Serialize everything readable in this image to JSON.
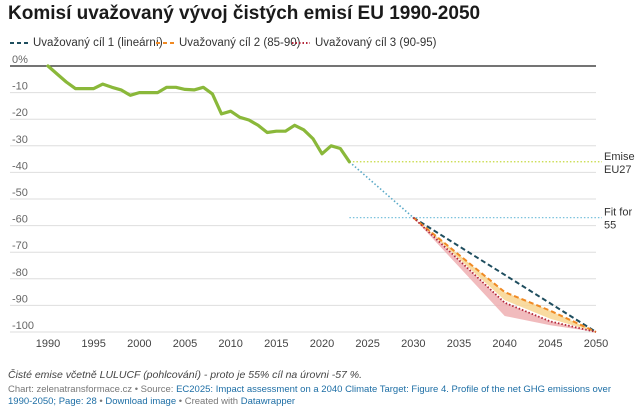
{
  "title": "Komisí uvažovaný vývoj čistých emisí EU 1990-2050",
  "legend": [
    {
      "label": "Uvažovaný cíl 1 (lineární)",
      "color": "#1f4e5f",
      "style": "dashed"
    },
    {
      "label": "Uvažovaný cíl 2 (85-90)",
      "color": "#f08a24",
      "style": "dashed"
    },
    {
      "label": "Uvažovaný cíl 3 (90-95)",
      "color": "#b3263a",
      "style": "dotted"
    }
  ],
  "chart_data": {
    "type": "line",
    "xlim": [
      1990,
      2050
    ],
    "ylim": [
      -100,
      0
    ],
    "x_ticks": [
      1990,
      1995,
      2000,
      2005,
      2010,
      2015,
      2020,
      2025,
      2030,
      2035,
      2040,
      2045,
      2050
    ],
    "y_ticks": [
      0,
      -10,
      -20,
      -30,
      -40,
      -50,
      -60,
      -70,
      -80,
      -90,
      -100
    ],
    "y_tick_labels": [
      "0%",
      "-10",
      "-20",
      "-30",
      "-40",
      "-50",
      "-60",
      "-70",
      "-80",
      "-90",
      "-100"
    ],
    "grid": "horizontal",
    "historical": {
      "color": "#8ab83a",
      "x": [
        1990,
        1991,
        1992,
        1993,
        1994,
        1995,
        1996,
        1997,
        1998,
        1999,
        2000,
        2001,
        2002,
        2003,
        2004,
        2005,
        2006,
        2007,
        2008,
        2009,
        2010,
        2011,
        2012,
        2013,
        2014,
        2015,
        2016,
        2017,
        2018,
        2019,
        2020,
        2021,
        2022,
        2023
      ],
      "y": [
        0,
        -3,
        -6,
        -8.5,
        -8.5,
        -8.5,
        -6.8,
        -8,
        -9,
        -11,
        -10,
        -10,
        -10,
        -8,
        -8,
        -8.8,
        -9,
        -8,
        -10.5,
        -18,
        -17,
        -19.3,
        -20.3,
        -22.3,
        -25,
        -24.5,
        -24.5,
        -22.3,
        -24,
        -27.3,
        -33,
        -30,
        -31,
        -36
      ]
    },
    "bridge": {
      "color": "#5aa9c7",
      "x": [
        2023,
        2030
      ],
      "y": [
        -36,
        -57
      ]
    },
    "target_linear": {
      "x": [
        2030,
        2050
      ],
      "y": [
        -57,
        -100
      ]
    },
    "target_85_90": {
      "color": "#f08a24",
      "band_color": "#f8d289",
      "x": [
        2030,
        2040,
        2045,
        2050
      ],
      "y": [
        -57,
        -85,
        -92,
        -100
      ],
      "low_y": [
        -57,
        -88,
        -95,
        -100
      ]
    },
    "target_90_95": {
      "color": "#b3263a",
      "band_color": "#eeaaad",
      "x": [
        2030,
        2040,
        2045,
        2050
      ],
      "y": [
        -57,
        -89,
        -96,
        -100
      ],
      "low_y": [
        -57,
        -94,
        -97.5,
        -100
      ]
    },
    "reference_lines": [
      {
        "y": -36,
        "color": "#c5d93e",
        "label": [
          "Emise",
          "EU27"
        ]
      },
      {
        "y": -57,
        "color": "#7ac2dd",
        "label": [
          "Fit for",
          "55"
        ]
      }
    ]
  },
  "note": "Čisté emise včetně LULUCF (pohlcování) - proto je 55% cíl na úrovni -57 %.",
  "source": {
    "prefix": "Chart: zelenatransformace.cz • Source: ",
    "source_link": "EC2025: Impact assessment on a 2040 Climate Target: Figure 4. Profile of the net GHG emissions over 1990-2050; Page: 28",
    "separator": " • ",
    "download": "Download image",
    "created": " • Created with ",
    "tool": "Datawrapper"
  }
}
